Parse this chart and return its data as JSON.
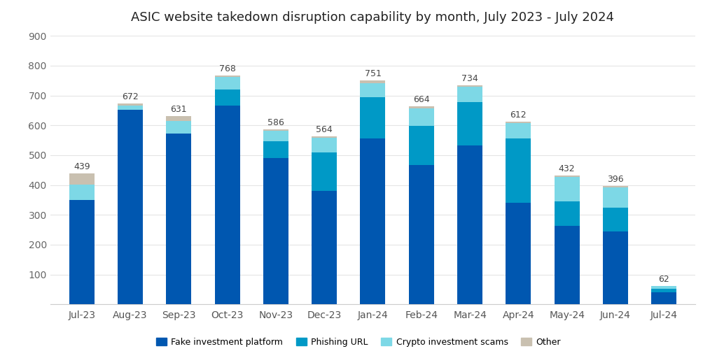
{
  "title": "ASIC website takedown disruption capability by month, July 2023 - July 2024",
  "categories": [
    "Jul-23",
    "Aug-23",
    "Sep-23",
    "Oct-23",
    "Nov-23",
    "Dec-23",
    "Jan-24",
    "Feb-24",
    "Mar-24",
    "Apr-24",
    "May-24",
    "Jun-24",
    "Jul-24"
  ],
  "totals": [
    439,
    672,
    631,
    768,
    586,
    564,
    751,
    664,
    734,
    612,
    432,
    396,
    62
  ],
  "fake_investment": [
    350,
    652,
    573,
    665,
    490,
    380,
    555,
    467,
    532,
    340,
    262,
    245,
    40
  ],
  "phishing_url": [
    0,
    0,
    0,
    55,
    56,
    130,
    140,
    130,
    145,
    215,
    82,
    80,
    13
  ],
  "crypto_scams": [
    52,
    13,
    42,
    42,
    35,
    48,
    46,
    60,
    52,
    53,
    84,
    66,
    8
  ],
  "other": [
    37,
    7,
    16,
    6,
    5,
    6,
    10,
    7,
    5,
    4,
    4,
    5,
    1
  ],
  "colors": {
    "fake_investment": "#0057b0",
    "phishing_url": "#0099c6",
    "crypto_scams": "#7dd8e6",
    "other": "#c9c0b0"
  },
  "legend_labels": [
    "Fake investment platform",
    "Phishing URL",
    "Crypto investment scams",
    "Other"
  ],
  "ylim": [
    0,
    900
  ],
  "yticks": [
    0,
    100,
    200,
    300,
    400,
    500,
    600,
    700,
    800,
    900
  ],
  "background_color": "#ffffff",
  "grid_color": "#e5e5e5",
  "title_fontsize": 13,
  "tick_fontsize": 10
}
